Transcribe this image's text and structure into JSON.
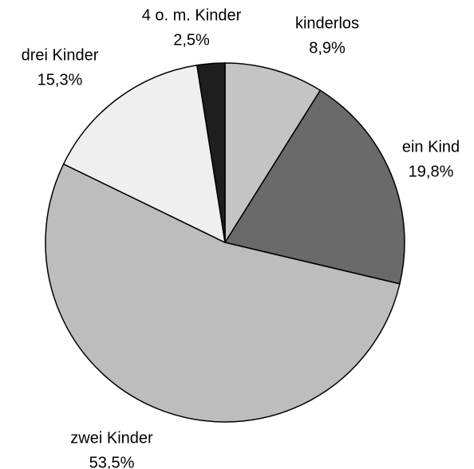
{
  "chart_data": {
    "type": "pie",
    "categories": [
      "kinderlos",
      "ein Kind",
      "zwei Kinder",
      "drei Kinder",
      "4 o. m. Kinder"
    ],
    "values": [
      8.9,
      19.8,
      53.5,
      15.3,
      2.5
    ],
    "value_labels": [
      "8,9%",
      "19,8%",
      "53,5%",
      "15,3%",
      "2,5%"
    ],
    "colors": [
      "#c4c4c4",
      "#6a6a6a",
      "#bdbdbd",
      "#efefef",
      "#1e1e1e"
    ]
  }
}
